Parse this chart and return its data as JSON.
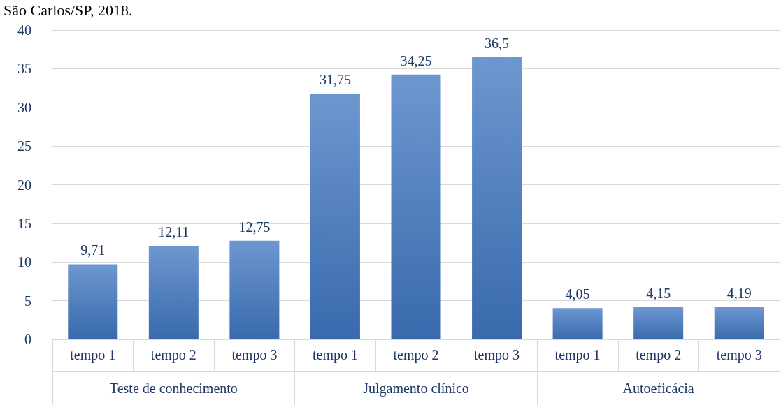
{
  "chart_data": {
    "type": "bar",
    "title": "São Carlos/SP, 2018.",
    "categories": [
      "tempo 1",
      "tempo 2",
      "tempo 3",
      "tempo 1",
      "tempo 2",
      "tempo 3",
      "tempo 1",
      "tempo 2",
      "tempo 3"
    ],
    "values": [
      9.71,
      12.11,
      12.75,
      31.75,
      34.25,
      36.5,
      4.05,
      4.15,
      4.19
    ],
    "value_labels": [
      "9,71",
      "12,11",
      "12,75",
      "31,75",
      "34,25",
      "36,5",
      "4,05",
      "4,15",
      "4,19"
    ],
    "color": "#4a7ec4",
    "annotations": [
      "Teste de conhecimento",
      "Julgamento clínico",
      "Autoeficácia"
    ],
    "ylim": [
      0,
      40
    ],
    "yticks": [
      0,
      5,
      10,
      15,
      20,
      25,
      30,
      35,
      40
    ],
    "grid": "y"
  }
}
